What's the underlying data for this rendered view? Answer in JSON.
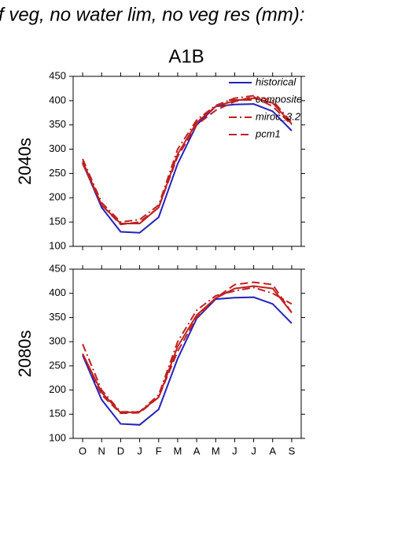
{
  "chart_data": [
    {
      "type": "line",
      "title": "f veg, no water lim, no veg res (mm):",
      "subtitle": "A1B",
      "ylabel": "2040s",
      "ylim": [
        100,
        450
      ],
      "yticks": [
        100,
        150,
        200,
        250,
        300,
        350,
        400,
        450
      ],
      "legend": "upper right",
      "series": [
        {
          "name": "historical",
          "color": "#2222bb",
          "dash": "solid",
          "values": [
            272,
            180,
            130,
            128,
            160,
            270,
            350,
            388,
            392,
            393,
            378,
            338
          ]
        },
        {
          "name": "composite",
          "color": "#c02020",
          "dash": "solid",
          "values": [
            275,
            185,
            147,
            147,
            180,
            290,
            355,
            388,
            400,
            405,
            395,
            352
          ]
        },
        {
          "name": "miroc_3.2",
          "color": "#c02020",
          "dash": "dashdot",
          "values": [
            280,
            190,
            150,
            155,
            185,
            300,
            360,
            390,
            405,
            410,
            400,
            355
          ]
        },
        {
          "name": "pcm1",
          "color": "#c02020",
          "dash": "dash",
          "values": [
            270,
            185,
            145,
            150,
            180,
            285,
            350,
            380,
            398,
            408,
            388,
            350
          ]
        }
      ]
    },
    {
      "type": "line",
      "ylabel": "2080s",
      "categories": [
        "O",
        "N",
        "D",
        "J",
        "F",
        "M",
        "A",
        "M",
        "J",
        "J",
        "A",
        "S"
      ],
      "ylim": [
        100,
        450
      ],
      "yticks": [
        100,
        150,
        200,
        250,
        300,
        350,
        400,
        450
      ],
      "series": [
        {
          "color": "#2222bb",
          "dash": "solid",
          "values": [
            272,
            180,
            130,
            128,
            160,
            265,
            348,
            388,
            391,
            392,
            378,
            338
          ]
        },
        {
          "color": "#c02020",
          "dash": "solid",
          "values": [
            275,
            195,
            153,
            155,
            185,
            290,
            355,
            390,
            410,
            415,
            410,
            360
          ]
        },
        {
          "color": "#c02020",
          "dash": "dashdot",
          "values": [
            295,
            200,
            155,
            155,
            190,
            300,
            365,
            395,
            405,
            412,
            400,
            378
          ]
        },
        {
          "color": "#c02020",
          "dash": "dash",
          "values": [
            275,
            190,
            152,
            153,
            185,
            280,
            350,
            390,
            418,
            423,
            418,
            360
          ]
        }
      ]
    }
  ]
}
